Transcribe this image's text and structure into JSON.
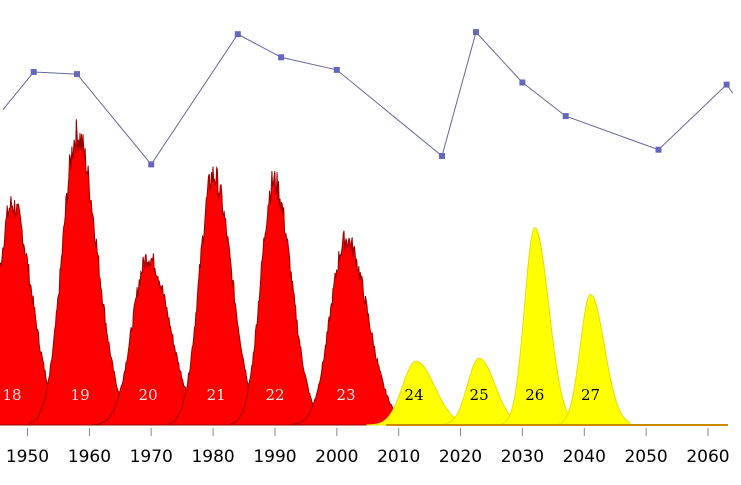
{
  "chart_data": {
    "type": "area",
    "title": "",
    "xlabel": "",
    "ylabel": "",
    "xlim": [
      1946,
      2064
    ],
    "x_ticks": [
      "1950",
      "1960",
      "1970",
      "1980",
      "1990",
      "2000",
      "2010",
      "2020",
      "2030",
      "2040",
      "2050",
      "2060"
    ],
    "grid": false,
    "colors": {
      "observed_fill": "#ff0000",
      "observed_edge": "#990000",
      "predicted_fill": "#ffff00",
      "predicted_edge": "#e0e000",
      "line": "#666699",
      "marker": "#6666bb",
      "baseline": "#cc8800"
    },
    "cycles": [
      {
        "label": "18",
        "center": 1947.5,
        "peak": 1947.5,
        "height": 0.76,
        "width": 4.2,
        "status": "observed"
      },
      {
        "label": "19",
        "center": 1958.5,
        "peak": 1958.0,
        "height": 1.0,
        "width": 4.3,
        "status": "observed"
      },
      {
        "label": "20",
        "center": 1969.5,
        "peak": 1969.5,
        "height": 0.58,
        "width": 4.6,
        "status": "observed"
      },
      {
        "label": "21",
        "center": 1980.5,
        "peak": 1980.0,
        "height": 0.86,
        "width": 4.0,
        "status": "observed"
      },
      {
        "label": "22",
        "center": 1990.0,
        "peak": 1989.8,
        "height": 0.84,
        "width": 3.8,
        "status": "observed"
      },
      {
        "label": "23",
        "center": 2001.5,
        "peak": 2001.5,
        "height": 0.64,
        "width": 4.6,
        "status": "observed"
      },
      {
        "label": "24",
        "center": 2012.5,
        "peak": 2012.8,
        "height": 0.22,
        "width": 4.0,
        "status": "predicted"
      },
      {
        "label": "25",
        "center": 2023.0,
        "peak": 2023.0,
        "height": 0.23,
        "width": 3.4,
        "status": "predicted"
      },
      {
        "label": "26",
        "center": 2032.0,
        "peak": 2032.0,
        "height": 0.68,
        "width": 3.0,
        "status": "predicted"
      },
      {
        "label": "27",
        "center": 2041.0,
        "peak": 2041.0,
        "height": 0.45,
        "width": 3.0,
        "status": "predicted"
      }
    ],
    "line_series": [
      {
        "x": 1946,
        "y": 0.62
      },
      {
        "x": 1951,
        "y": 0.8
      },
      {
        "x": 1958,
        "y": 0.79
      },
      {
        "x": 1970,
        "y": 0.36
      },
      {
        "x": 1984,
        "y": 0.98
      },
      {
        "x": 1991,
        "y": 0.87
      },
      {
        "x": 2000,
        "y": 0.81
      },
      {
        "x": 2017,
        "y": 0.4
      },
      {
        "x": 2022.5,
        "y": 0.99
      },
      {
        "x": 2030,
        "y": 0.75
      },
      {
        "x": 2037,
        "y": 0.59
      },
      {
        "x": 2052,
        "y": 0.43
      },
      {
        "x": 2063,
        "y": 0.74
      },
      {
        "x": 2064,
        "y": 0.7
      }
    ],
    "marker_points": [
      1951,
      1958,
      1970,
      1984,
      1991,
      2000,
      2017,
      2022.5,
      2030,
      2037,
      2052,
      2063
    ]
  }
}
